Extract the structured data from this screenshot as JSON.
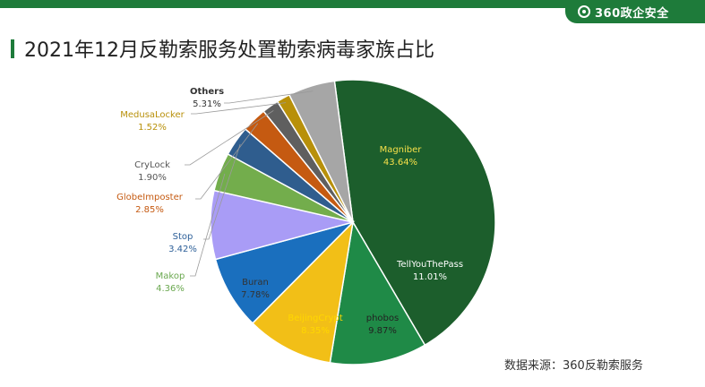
{
  "header": {
    "brand_label": "360政企安全",
    "title": "2021年12月反勒索服务处置勒索病毒家族占比"
  },
  "source_note": "数据来源：360反勒索服务",
  "chart_data": {
    "type": "pie",
    "title": "2021年12月反勒索服务处置勒索病毒家族占比",
    "slices": [
      {
        "name": "Magniber",
        "value": 43.64,
        "label": "43.64%",
        "color": "#1c5e2c",
        "text_color": "#f6e04a"
      },
      {
        "name": "TellYouThePass",
        "value": 11.01,
        "label": "11.01%",
        "color": "#1f8a47",
        "text_color": "#ffffff"
      },
      {
        "name": "phobos",
        "value": 9.87,
        "label": "9.87%",
        "color": "#f2bf17",
        "text_color": "#222222"
      },
      {
        "name": "BeijingCrypt",
        "value": 8.35,
        "label": "8.35%",
        "color": "#1a6fbe",
        "text_color": "#ffd700"
      },
      {
        "name": "Buran",
        "value": 7.78,
        "label": "7.78%",
        "color": "#a99cf6",
        "text_color": "#333333"
      },
      {
        "name": "Makop",
        "value": 4.36,
        "label": "4.36%",
        "color": "#73ad4c",
        "text_color": "#6aa84f"
      },
      {
        "name": "Stop",
        "value": 3.42,
        "label": "3.42%",
        "color": "#2f5d8e",
        "text_color": "#2e6099"
      },
      {
        "name": "GlobeImposter",
        "value": 2.85,
        "label": "2.85%",
        "color": "#c55a11",
        "text_color": "#c55a11"
      },
      {
        "name": "CryLock",
        "value": 1.9,
        "label": "1.90%",
        "color": "#5f5f5f",
        "text_color": "#555555"
      },
      {
        "name": "MedusaLocker",
        "value": 1.52,
        "label": "1.52%",
        "color": "#b8900a",
        "text_color": "#b8900a"
      },
      {
        "name": "Others",
        "value": 5.31,
        "label": "5.31%",
        "color": "#a6a6a6",
        "text_color": "#333333"
      }
    ]
  }
}
